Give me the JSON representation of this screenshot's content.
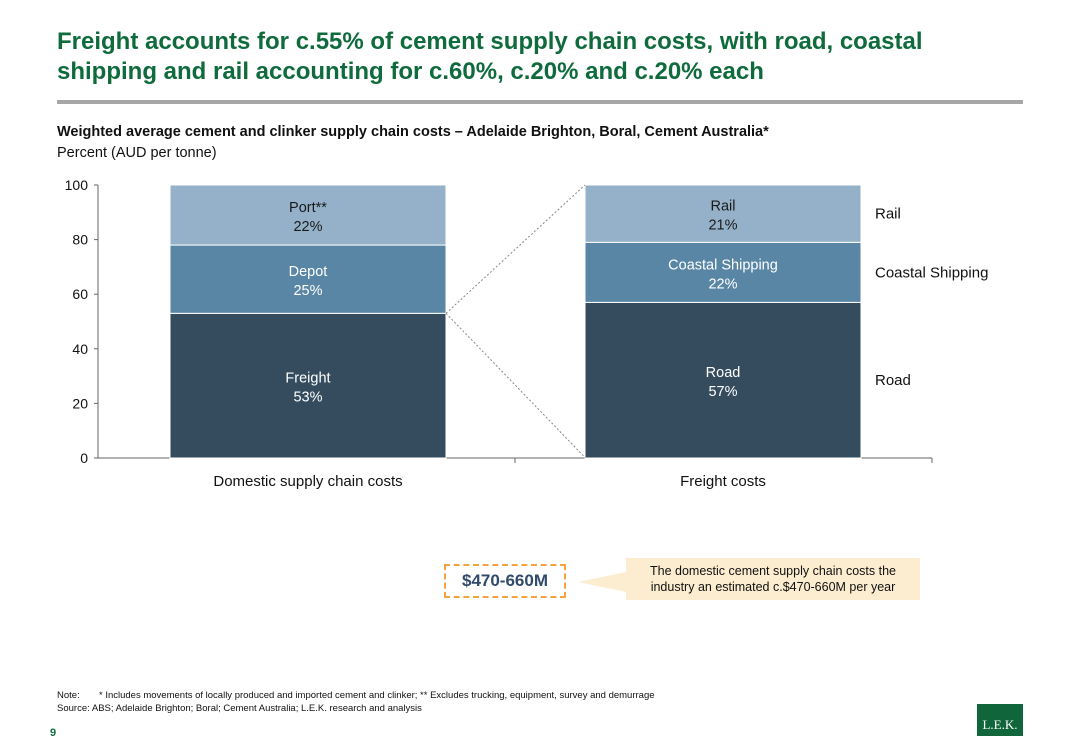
{
  "header": {
    "title": "Freight accounts for c.55% of cement supply chain costs, with road, coastal shipping and rail accounting for c.60%, c.20% and c.20% each"
  },
  "chart_data": {
    "type": "bar",
    "stacked": true,
    "title": "Weighted average cement and clinker supply chain costs – Adelaide Brighton, Boral, Cement Australia*",
    "subtitle": "Percent (AUD per tonne)",
    "ylim": [
      0,
      100
    ],
    "yticks": [
      0,
      20,
      40,
      60,
      80,
      100
    ],
    "categories": [
      "Domestic supply chain costs",
      "Freight costs"
    ],
    "bars": [
      {
        "category": "Domestic supply chain costs",
        "segments": [
          {
            "name": "Freight",
            "value": 53,
            "label": "53%",
            "color": "#344c5e"
          },
          {
            "name": "Depot",
            "value": 25,
            "label": "25%",
            "color": "#5a86a6"
          },
          {
            "name": "Port**",
            "value": 22,
            "label": "22%",
            "color": "#94b1c9"
          }
        ]
      },
      {
        "category": "Freight costs",
        "segments": [
          {
            "name": "Road",
            "value": 57,
            "label": "57%",
            "color": "#344c5e"
          },
          {
            "name": "Coastal Shipping",
            "value": 22,
            "label": "22%",
            "color": "#5a86a6"
          },
          {
            "name": "Rail",
            "value": 21,
            "label": "21%",
            "color": "#94b1c9"
          }
        ]
      }
    ],
    "legend": [
      "Rail",
      "Coastal Shipping",
      "Road"
    ],
    "legend_placement": "right"
  },
  "callout": {
    "value": "$470-660M",
    "text": "The domestic cement supply chain costs the industry an estimated c.$470-660M per year",
    "accent": "#f4a340",
    "background": "#fcedd0"
  },
  "footer": {
    "note_key": "Note:",
    "note": "* Includes movements of locally produced and imported cement and clinker; ** Excludes trucking, equipment, survey and demurrage",
    "source_key": "Source:",
    "source": "ABS; Adelaide Brighton; Boral; Cement Australia; L.E.K. research and analysis",
    "page": "9",
    "logo": "L.E.K."
  },
  "colors": {
    "title": "#0f6b3c",
    "rule": "#a6a6a6"
  }
}
